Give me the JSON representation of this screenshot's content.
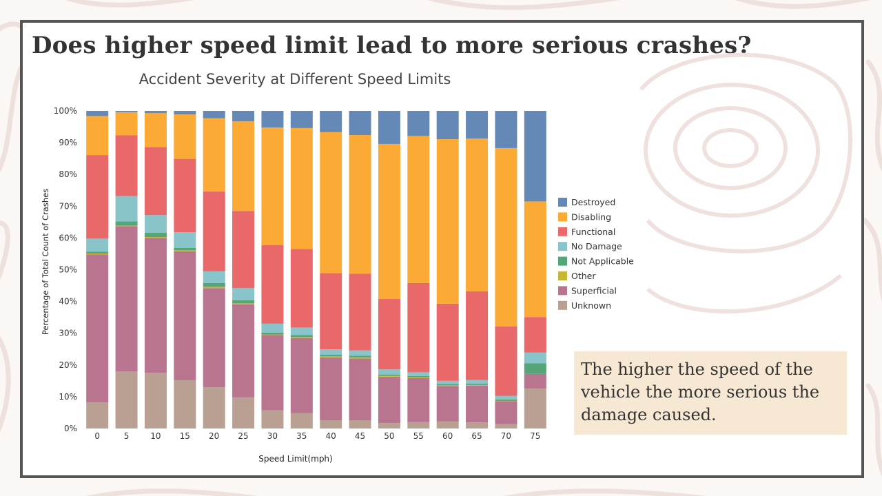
{
  "slide": {
    "title": "Does higher speed limit lead to more serious crashes?",
    "callout": "The higher the speed of the vehicle the more serious the damage caused."
  },
  "chart_data": {
    "type": "bar",
    "stacked": true,
    "title": "Accident Severity at Different Speed Limits",
    "xlabel": "Speed Limit(mph)",
    "ylabel": "Percentage of Total Count of Crashes",
    "ylim": [
      0,
      100
    ],
    "y_ticks": [
      "0%",
      "10%",
      "20%",
      "30%",
      "40%",
      "50%",
      "60%",
      "70%",
      "80%",
      "90%",
      "100%"
    ],
    "legend_position": "right",
    "categories": [
      "0",
      "5",
      "10",
      "15",
      "20",
      "25",
      "30",
      "35",
      "40",
      "45",
      "50",
      "55",
      "60",
      "65",
      "70",
      "75"
    ],
    "series": [
      {
        "name": "Unknown",
        "color": "#b9a093",
        "values": [
          8.2,
          18.0,
          17.5,
          15.2,
          13.0,
          9.8,
          5.7,
          4.8,
          2.6,
          2.6,
          1.7,
          2.0,
          2.2,
          1.9,
          1.4,
          12.6
        ]
      },
      {
        "name": "Superficial",
        "color": "#b9748f",
        "values": [
          46.6,
          45.7,
          42.5,
          40.6,
          31.2,
          29.3,
          23.7,
          23.7,
          19.8,
          19.4,
          14.6,
          13.9,
          11.2,
          11.6,
          7.2,
          4.6
        ]
      },
      {
        "name": "Other",
        "color": "#c7b636",
        "values": [
          0.3,
          0.2,
          0.3,
          0.3,
          0.4,
          0.3,
          0.2,
          0.3,
          0.3,
          0.4,
          0.3,
          0.2,
          0.2,
          0.2,
          0.1,
          0.0
        ]
      },
      {
        "name": "Not Applicable",
        "color": "#54a577",
        "values": [
          0.6,
          1.3,
          1.3,
          0.8,
          1.2,
          1.0,
          0.6,
          0.6,
          0.5,
          0.5,
          0.4,
          0.4,
          0.4,
          0.4,
          0.4,
          3.3
        ]
      },
      {
        "name": "No Damage",
        "color": "#89c4cb",
        "values": [
          4.1,
          8.0,
          5.6,
          4.9,
          3.7,
          3.8,
          2.8,
          2.4,
          1.7,
          1.7,
          1.6,
          1.2,
          1.0,
          1.2,
          1.2,
          3.4
        ]
      },
      {
        "name": "Functional",
        "color": "#e9686a",
        "values": [
          26.3,
          19.1,
          21.4,
          23.1,
          25.1,
          24.3,
          24.7,
          24.7,
          24.0,
          24.1,
          22.2,
          28.1,
          24.3,
          27.9,
          21.8,
          11.2
        ]
      },
      {
        "name": "Disabling",
        "color": "#faaa35",
        "values": [
          12.3,
          7.3,
          10.7,
          14.0,
          23.1,
          28.2,
          37.1,
          38.1,
          44.4,
          43.7,
          48.8,
          46.3,
          51.8,
          48.1,
          56.2,
          36.4
        ]
      },
      {
        "name": "Destroyed",
        "color": "#6589b6",
        "values": [
          1.6,
          0.4,
          0.7,
          1.1,
          2.3,
          3.3,
          5.2,
          5.4,
          6.7,
          7.6,
          10.4,
          7.9,
          8.9,
          8.7,
          11.7,
          28.5
        ]
      }
    ]
  }
}
